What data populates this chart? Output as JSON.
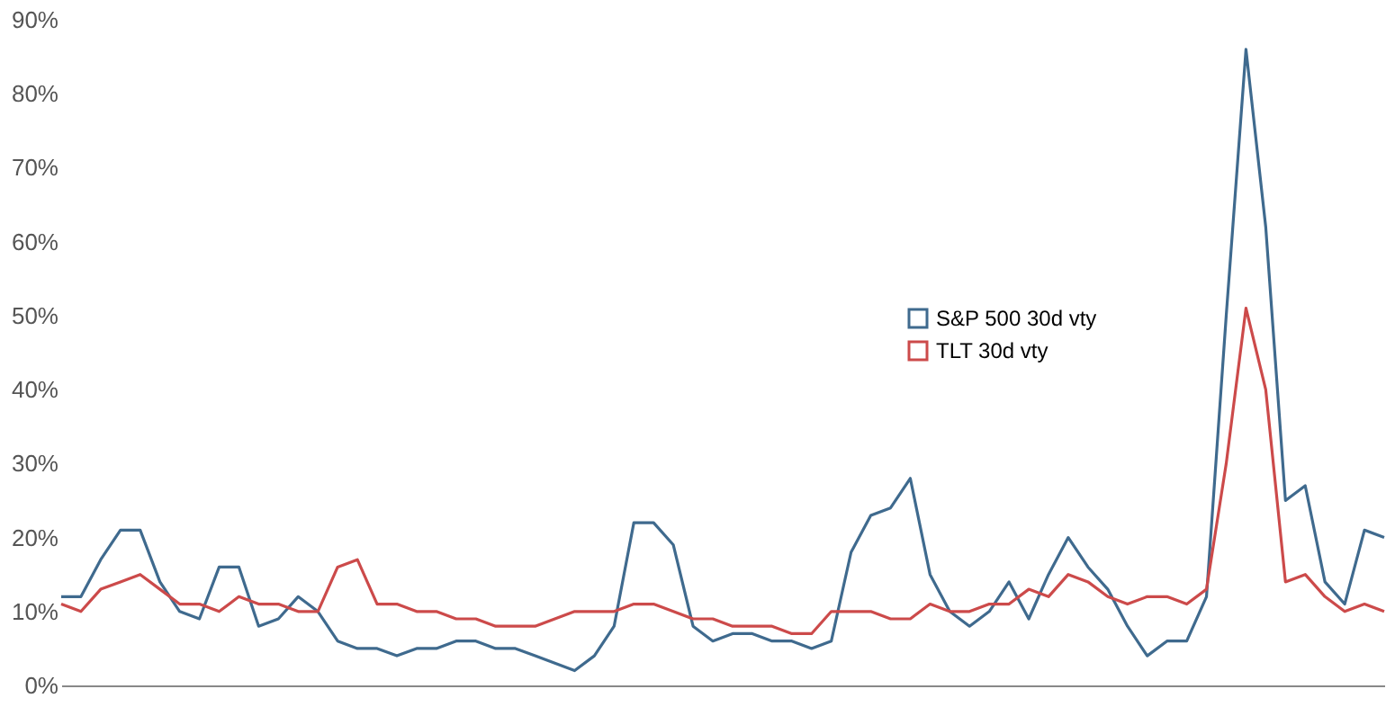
{
  "chart_data": {
    "type": "line",
    "categories": [
      null,
      null,
      null,
      null,
      null,
      null,
      null,
      null,
      null,
      null,
      null,
      null,
      null,
      null,
      null,
      null,
      null,
      null,
      null,
      null,
      null,
      null,
      null,
      null,
      null,
      null,
      null,
      null,
      null,
      null,
      null,
      null,
      null,
      null,
      null,
      null,
      null,
      null,
      null,
      null,
      null,
      null,
      null,
      null,
      null,
      null,
      null,
      null,
      null,
      null,
      null,
      null,
      null,
      null,
      null,
      null,
      null,
      null,
      null,
      null,
      null,
      null,
      null,
      null,
      null,
      null,
      null,
      null
    ],
    "series": [
      {
        "name": "S&P 500 30d vty",
        "color": "#3f6a8e",
        "values": [
          12,
          12,
          17,
          21,
          21,
          14,
          10,
          9,
          16,
          16,
          8,
          9,
          12,
          10,
          6,
          5,
          5,
          4,
          5,
          5,
          6,
          6,
          5,
          5,
          4,
          3,
          2,
          4,
          8,
          22,
          22,
          19,
          8,
          6,
          7,
          7,
          6,
          6,
          5,
          6,
          18,
          23,
          24,
          28,
          15,
          10,
          8,
          10,
          14,
          9,
          15,
          20,
          16,
          13,
          8,
          4,
          6,
          6,
          12,
          50,
          86,
          62,
          25,
          27,
          14,
          11,
          21,
          20
        ]
      },
      {
        "name": "TLT 30d vty",
        "color": "#cc4a4a",
        "values": [
          11,
          10,
          13,
          14,
          15,
          13,
          11,
          11,
          10,
          12,
          11,
          11,
          10,
          10,
          16,
          17,
          11,
          11,
          10,
          10,
          9,
          9,
          8,
          8,
          8,
          9,
          10,
          10,
          10,
          11,
          11,
          10,
          9,
          9,
          8,
          8,
          8,
          7,
          7,
          10,
          10,
          10,
          9,
          9,
          11,
          10,
          10,
          11,
          11,
          13,
          12,
          15,
          14,
          12,
          11,
          12,
          12,
          11,
          13,
          30,
          51,
          40,
          14,
          15,
          12,
          10,
          11,
          10
        ]
      }
    ],
    "ylim": [
      0,
      90
    ],
    "yticks": [
      {
        "value": 0,
        "label": "0%"
      },
      {
        "value": 10,
        "label": "10%"
      },
      {
        "value": 20,
        "label": "20%"
      },
      {
        "value": 30,
        "label": "30%"
      },
      {
        "value": 40,
        "label": "40%"
      },
      {
        "value": 50,
        "label": "50%"
      },
      {
        "value": 60,
        "label": "60%"
      },
      {
        "value": 70,
        "label": "70%"
      },
      {
        "value": 80,
        "label": "80%"
      },
      {
        "value": 90,
        "label": "90%"
      }
    ],
    "tick_labels": "y",
    "grid": false,
    "legend": "right",
    "marker": "none",
    "line_style": "solid"
  }
}
